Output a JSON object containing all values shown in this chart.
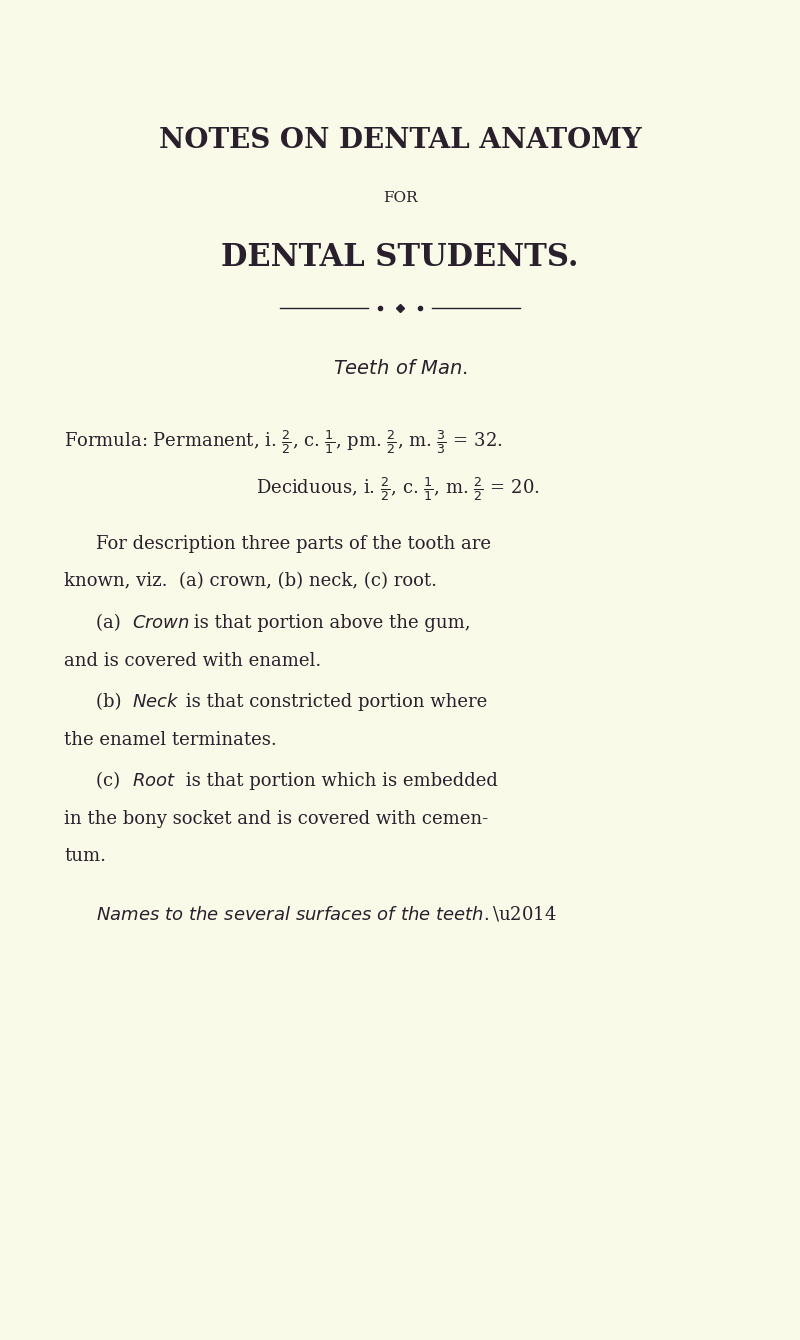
{
  "bg_color": "#FAFAE8",
  "text_color": "#2a1f2d",
  "title1": "NOTES ON DENTAL ANATOMY",
  "title2": "FOR",
  "title3": "DENTAL STUDENTS.",
  "subtitle": "Teeth of Man.",
  "formula_line1": "Formula: Permanent, i. $\\frac{2}{2}$, c. $\\frac{1}{1}$, pm. $\\frac{2}{2}$, m. $\\frac{3}{3}$ = 32.",
  "formula_line2": "Deciduous, i. $\\frac{2}{2}$, c. $\\frac{1}{1}$, m. $\\frac{2}{2}$ = 20.",
  "para1": "For description three parts of the tooth are\nknown, viz. (a) crown, (b) neck, (c) root.",
  "para2a_label": "(a)",
  "para2a_italic": "Crown",
  "para2a_rest": " is that portion above the gum,\nand is covered with enamel.",
  "para2b_label": "(b)",
  "para2b_italic": "Neck",
  "para2b_rest": " is that constricted portion where\nthe enamel terminates.",
  "para2c_label": "(c)",
  "para2c_italic": "Root",
  "para2c_rest": " is that portion which is embedded\nin the bony socket and is covered with cemen-\ntum.",
  "last_line": "Names to the several surfaces of the teeth.—",
  "figsize": [
    8.0,
    13.4
  ],
  "dpi": 100
}
